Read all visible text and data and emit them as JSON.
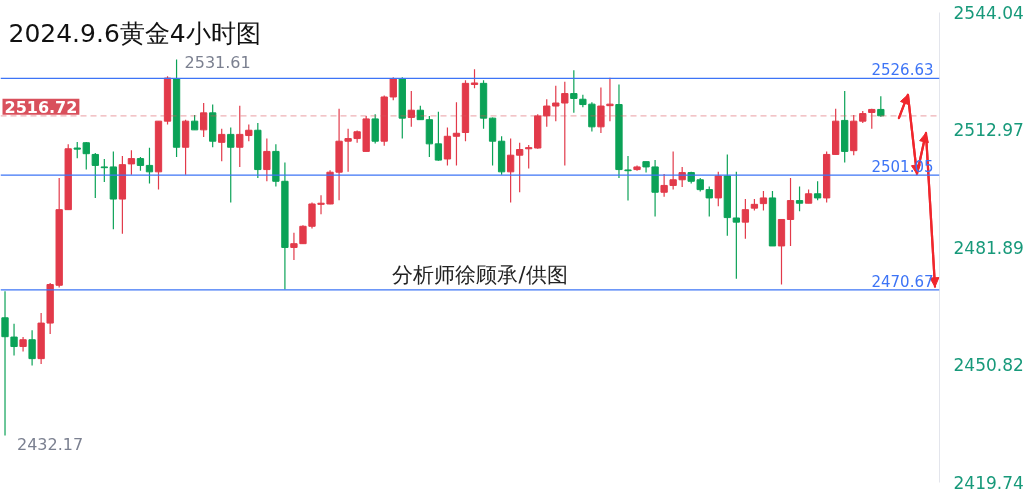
{
  "chart_data": {
    "type": "candlestick",
    "title": "2024.9.6黄金4小时图",
    "categories": [
      null,
      null,
      null,
      null,
      null,
      null,
      null,
      null,
      null,
      null,
      null,
      null,
      null,
      null,
      null,
      null,
      null,
      null,
      null,
      null,
      null,
      null,
      null,
      null,
      null,
      null,
      null,
      null,
      null,
      null,
      null,
      null,
      null,
      null,
      null,
      null,
      null,
      null,
      null,
      null,
      null,
      null,
      null,
      null,
      null,
      null,
      null,
      null,
      null,
      null,
      null,
      null,
      null,
      null,
      null,
      null,
      null,
      null,
      null,
      null,
      null,
      null,
      null,
      null,
      null,
      null,
      null,
      null,
      null,
      null,
      null,
      null,
      null,
      null,
      null,
      null,
      null,
      null,
      null,
      null,
      null,
      null,
      null,
      null,
      null,
      null,
      null,
      null,
      null,
      null,
      null,
      null,
      null,
      null,
      null,
      null,
      null,
      null,
      null,
      null,
      null,
      null,
      null,
      null
    ],
    "ohlc": [
      [
        2463.3,
        2470.3,
        2432.17,
        2458.3
      ],
      [
        2458.2,
        2461.7,
        2453.3,
        2455.7
      ],
      [
        2455.7,
        2458.2,
        2454.4,
        2457.5
      ],
      [
        2457.5,
        2460.0,
        2450.7,
        2452.5
      ],
      [
        2452.5,
        2464.6,
        2451.1,
        2461.9
      ],
      [
        2461.9,
        2472.5,
        2459.0,
        2472.1
      ],
      [
        2471.9,
        2500.3,
        2471.3,
        2491.9
      ],
      [
        2491.9,
        2509.2,
        2491.9,
        2508.0
      ],
      [
        2508.2,
        2509.8,
        2505.5,
        2507.9
      ],
      [
        2509.6,
        2509.8,
        2502.5,
        2506.7
      ],
      [
        2506.5,
        2506.9,
        2495.0,
        2503.6
      ],
      [
        2503.2,
        2505.3,
        2499.2,
        2503.0
      ],
      [
        2503.2,
        2507.3,
        2486.7,
        2494.7
      ],
      [
        2494.7,
        2506.1,
        2485.5,
        2503.8
      ],
      [
        2504.0,
        2507.6,
        2501.1,
        2505.4
      ],
      [
        2505.4,
        2505.8,
        2502.2,
        2503.6
      ],
      [
        2503.6,
        2508.3,
        2498.8,
        2501.9
      ],
      [
        2501.9,
        2515.3,
        2497.2,
        2515.3
      ],
      [
        2515.3,
        2527.2,
        2514.4,
        2526.7
      ],
      [
        2526.5,
        2531.61,
        2505.8,
        2508.4
      ],
      [
        2508.4,
        2515.7,
        2501.1,
        2515.3
      ],
      [
        2515.3,
        2516.9,
        2513.0,
        2513.0
      ],
      [
        2513.0,
        2520.1,
        2511.1,
        2517.5
      ],
      [
        2517.5,
        2519.7,
        2508.4,
        2510.0
      ],
      [
        2509.7,
        2513.3,
        2504.7,
        2511.8
      ],
      [
        2511.8,
        2513.6,
        2493.8,
        2508.4
      ],
      [
        2508.4,
        2519.4,
        2503.2,
        2511.8
      ],
      [
        2511.5,
        2514.4,
        2510.0,
        2512.9
      ],
      [
        2512.9,
        2514.8,
        2500.3,
        2502.5
      ],
      [
        2502.5,
        2510.7,
        2499.4,
        2507.3
      ],
      [
        2507.3,
        2509.2,
        2498.0,
        2499.4
      ],
      [
        2499.4,
        2504.4,
        2470.8,
        2481.9
      ],
      [
        2481.9,
        2485.8,
        2478.6,
        2482.9
      ],
      [
        2482.9,
        2487.8,
        2482.8,
        2487.5
      ],
      [
        2487.5,
        2493.8,
        2486.9,
        2493.4
      ],
      [
        2493.3,
        2495.7,
        2490.7,
        2493.6
      ],
      [
        2493.4,
        2502.3,
        2493.3,
        2501.8
      ],
      [
        2501.8,
        2518.6,
        2494.4,
        2510.0
      ],
      [
        2510.0,
        2513.3,
        2501.9,
        2510.7
      ],
      [
        2510.7,
        2512.8,
        2509.6,
        2512.5
      ],
      [
        2507.3,
        2516.7,
        2507.3,
        2515.9
      ],
      [
        2515.9,
        2517.1,
        2509.4,
        2510.0
      ],
      [
        2510.0,
        2522.1,
        2508.8,
        2521.7
      ],
      [
        2521.7,
        2526.9,
        2520.8,
        2526.5
      ],
      [
        2526.5,
        2526.9,
        2510.7,
        2516.1
      ],
      [
        2516.3,
        2523.3,
        2513.8,
        2518.2
      ],
      [
        2518.2,
        2519.4,
        2515.7,
        2515.7
      ],
      [
        2515.7,
        2516.7,
        2505.8,
        2509.3
      ],
      [
        2509.3,
        2517.8,
        2504.8,
        2505.0
      ],
      [
        2505.3,
        2513.6,
        2503.6,
        2511.3
      ],
      [
        2511.3,
        2520.3,
        2503.6,
        2512.1
      ],
      [
        2512.3,
        2526.1,
        2510.0,
        2525.3
      ],
      [
        2525.0,
        2529.0,
        2524.0,
        2525.4
      ],
      [
        2525.3,
        2526.1,
        2513.3,
        2516.1
      ],
      [
        2516.1,
        2516.3,
        2503.6,
        2510.0
      ],
      [
        2510.0,
        2511.3,
        2501.1,
        2501.9
      ],
      [
        2501.9,
        2510.7,
        2493.8,
        2506.3
      ],
      [
        2506.3,
        2509.6,
        2496.5,
        2507.8
      ],
      [
        2508.0,
        2509.0,
        2502.8,
        2508.3
      ],
      [
        2508.2,
        2517.1,
        2508.0,
        2516.7
      ],
      [
        2516.7,
        2521.1,
        2513.8,
        2519.3
      ],
      [
        2519.3,
        2524.7,
        2515.3,
        2520.1
      ],
      [
        2520.1,
        2525.7,
        2503.6,
        2522.6
      ],
      [
        2522.6,
        2528.8,
        2517.5,
        2521.3
      ],
      [
        2521.1,
        2522.3,
        2519.0,
        2519.7
      ],
      [
        2519.8,
        2520.3,
        2512.6,
        2513.8
      ],
      [
        2513.8,
        2524.2,
        2512.2,
        2519.3
      ],
      [
        2519.4,
        2526.8,
        2515.3,
        2519.8
      ],
      [
        2519.7,
        2525.0,
        2500.3,
        2502.5
      ],
      [
        2502.4,
        2506.1,
        2494.3,
        2502.2
      ],
      [
        2502.5,
        2503.6,
        2502.2,
        2503.2
      ],
      [
        2504.6,
        2504.6,
        2501.7,
        2503.2
      ],
      [
        2503.2,
        2505.0,
        2490.1,
        2496.5
      ],
      [
        2496.5,
        2501.3,
        2495.3,
        2498.3
      ],
      [
        2498.3,
        2507.3,
        2497.2,
        2499.8
      ],
      [
        2499.8,
        2503.2,
        2497.9,
        2501.7
      ],
      [
        2501.7,
        2501.9,
        2498.8,
        2499.4
      ],
      [
        2499.8,
        2500.3,
        2496.7,
        2497.2
      ],
      [
        2497.2,
        2498.0,
        2490.1,
        2495.0
      ],
      [
        2495.0,
        2501.9,
        2492.8,
        2500.8
      ],
      [
        2500.8,
        2506.5,
        2485.0,
        2489.8
      ],
      [
        2489.7,
        2501.9,
        2473.6,
        2488.6
      ],
      [
        2488.6,
        2494.7,
        2484.2,
        2491.9
      ],
      [
        2492.3,
        2494.7,
        2491.7,
        2493.3
      ],
      [
        2493.5,
        2496.8,
        2491.7,
        2495.0
      ],
      [
        2495.0,
        2496.8,
        2482.3,
        2482.3
      ],
      [
        2482.3,
        2489.3,
        2472.1,
        2489.3
      ],
      [
        2489.3,
        2500.3,
        2482.3,
        2494.3
      ],
      [
        2494.3,
        2498.0,
        2491.5,
        2493.6
      ],
      [
        2493.6,
        2497.2,
        2493.6,
        2496.1
      ],
      [
        2496.1,
        2499.4,
        2494.4,
        2495.0
      ],
      [
        2495.0,
        2507.3,
        2493.8,
        2506.5
      ],
      [
        2506.5,
        2518.6,
        2506.5,
        2515.3
      ],
      [
        2515.5,
        2523.3,
        2504.4,
        2507.3
      ],
      [
        2507.5,
        2516.9,
        2506.3,
        2515.3
      ],
      [
        2515.3,
        2518.0,
        2514.8,
        2517.3
      ],
      [
        2517.6,
        2518.6,
        2513.3,
        2518.4
      ],
      [
        2518.4,
        2521.9,
        2516.5,
        2516.72
      ],
      null,
      null,
      null,
      null,
      null,
      null
    ],
    "colors": [
      "#0ba257",
      "#0ba257",
      "#e23a4a",
      "#0ba257",
      "#e23a4a",
      "#e23a4a",
      "#e23a4a",
      "#e23a4a",
      "#0ba257",
      "#0ba257",
      "#0ba257",
      "#0ba257",
      "#0ba257",
      "#e23a4a",
      "#e23a4a",
      "#0ba257",
      "#0ba257",
      "#e23a4a",
      "#e23a4a",
      "#0ba257",
      "#e23a4a",
      "#0ba257",
      "#e23a4a",
      "#0ba257",
      "#e23a4a",
      "#0ba257",
      "#e23a4a",
      "#e23a4a",
      "#0ba257",
      "#e23a4a",
      "#0ba257",
      "#0ba257",
      "#e23a4a",
      "#e23a4a",
      "#e23a4a",
      "#e23a4a",
      "#e23a4a",
      "#e23a4a",
      "#e23a4a",
      "#e23a4a",
      "#e23a4a",
      "#0ba257",
      "#e23a4a",
      "#e23a4a",
      "#0ba257",
      "#e23a4a",
      "#0ba257",
      "#0ba257",
      "#0ba257",
      "#e23a4a",
      "#e23a4a",
      "#e23a4a",
      "#e23a4a",
      "#0ba257",
      "#0ba257",
      "#0ba257",
      "#e23a4a",
      "#e23a4a",
      "#e23a4a",
      "#e23a4a",
      "#e23a4a",
      "#e23a4a",
      "#e23a4a",
      "#0ba257",
      "#0ba257",
      "#0ba257",
      "#e23a4a",
      "#e23a4a",
      "#0ba257",
      "#0ba257",
      "#e23a4a",
      "#0ba257",
      "#0ba257",
      "#e23a4a",
      "#e23a4a",
      "#e23a4a",
      "#0ba257",
      "#0ba257",
      "#0ba257",
      "#e23a4a",
      "#0ba257",
      "#0ba257",
      "#e23a4a",
      "#e23a4a",
      "#e23a4a",
      "#0ba257",
      "#e23a4a",
      "#e23a4a",
      "#0ba257",
      "#e23a4a",
      "#0ba257",
      "#e23a4a",
      "#e23a4a",
      "#0ba257",
      "#e23a4a",
      "#e23a4a",
      "#e23a4a",
      "#0ba257",
      null,
      null,
      null,
      null,
      null,
      null
    ],
    "series": [
      {
        "type": "line",
        "color": "#f0262c",
        "values": [
          null,
          null,
          null,
          null,
          null,
          null,
          null,
          null,
          null,
          null,
          null,
          null,
          null,
          null,
          null,
          null,
          null,
          null,
          null,
          null,
          null,
          null,
          null,
          null,
          null,
          null,
          null,
          null,
          null,
          null,
          null,
          null,
          null,
          null,
          null,
          null,
          null,
          null,
          null,
          null,
          null,
          null,
          null,
          null,
          null,
          null,
          null,
          null,
          null,
          null,
          null,
          null,
          null,
          null,
          null,
          null,
          null,
          null,
          null,
          null,
          null,
          null,
          null,
          null,
          null,
          null,
          null,
          null,
          null,
          null,
          null,
          null,
          null,
          null,
          null,
          null,
          null,
          null,
          null,
          null,
          null,
          null,
          null,
          null,
          null,
          null,
          null,
          null,
          null,
          null,
          null,
          null,
          null,
          null,
          null,
          null,
          null,
          null,
          null,
          2516.1,
          2522.3,
          2501.3,
          2512.2,
          2471.5
        ]
      }
    ],
    "ylim": [
      2419.74,
      2544.04
    ],
    "yticks": [
      2419.74,
      2450.82,
      2481.89,
      2512.97,
      2544.04
    ],
    "tick_labels": "y",
    "ref_lines": [
      {
        "axis": "y",
        "value": 2526.63,
        "label": "2526.63",
        "color": "#3d74f6"
      },
      {
        "axis": "y",
        "value": 2501.05,
        "label": "2501.05",
        "color": "#3d74f6"
      },
      {
        "axis": "y",
        "value": 2470.67,
        "label": "2470.67",
        "color": "#3d74f6"
      },
      {
        "axis": "y",
        "value": 2516.72,
        "label": "2516.72",
        "color": "#d9505c",
        "line_style": "dashed"
      }
    ],
    "annotations": [
      "2531.61",
      "2432.17",
      "分析师徐顾承/供图"
    ]
  }
}
